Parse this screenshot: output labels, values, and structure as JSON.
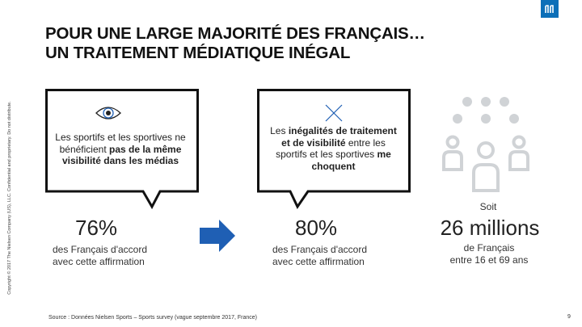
{
  "side_text": "Copyright © 2017 The Nielsen Company (US), LLC. Confidential and proprietary. Do not distribute.",
  "title": {
    "line1": "POUR UNE LARGE MAJORITÉ DES FRANÇAIS…",
    "line2": "UN TRAITEMENT MÉDIATIQUE INÉGAL"
  },
  "logo": {
    "icon": "nielsen-n-logo",
    "color": "#0c6fb8"
  },
  "bubble1": {
    "icon": "eye-icon",
    "text_before": "Les sportifs et les sportives ne bénéficient ",
    "text_bold": "pas de la même visibilité dans les médias"
  },
  "bubble2": {
    "icon": "cross-icon",
    "text_before": "Les ",
    "text_bold1": "inégalités de traitement et de visibilité",
    "text_mid": " entre les sportifs et les sportives ",
    "text_bold2": "me choquent"
  },
  "stat1": {
    "value": "76%",
    "line1": "des Français d'accord",
    "line2": "avec cette affirmation"
  },
  "stat2": {
    "value": "80%",
    "line1": "des Français d'accord",
    "line2": "avec cette affirmation"
  },
  "stat3": {
    "prefix": "Soit",
    "value": "26 millions",
    "line1": "de Français",
    "line2": "entre 16 et 69 ans"
  },
  "arrow": {
    "icon": "right-arrow-icon",
    "color": "#1f5fb4"
  },
  "people_icon": {
    "icon": "people-group-icon",
    "color": "#d0d3d6"
  },
  "source": "Source : Données Nielsen Sports – Sports survey (vague septembre 2017, France)",
  "page_number": "9"
}
